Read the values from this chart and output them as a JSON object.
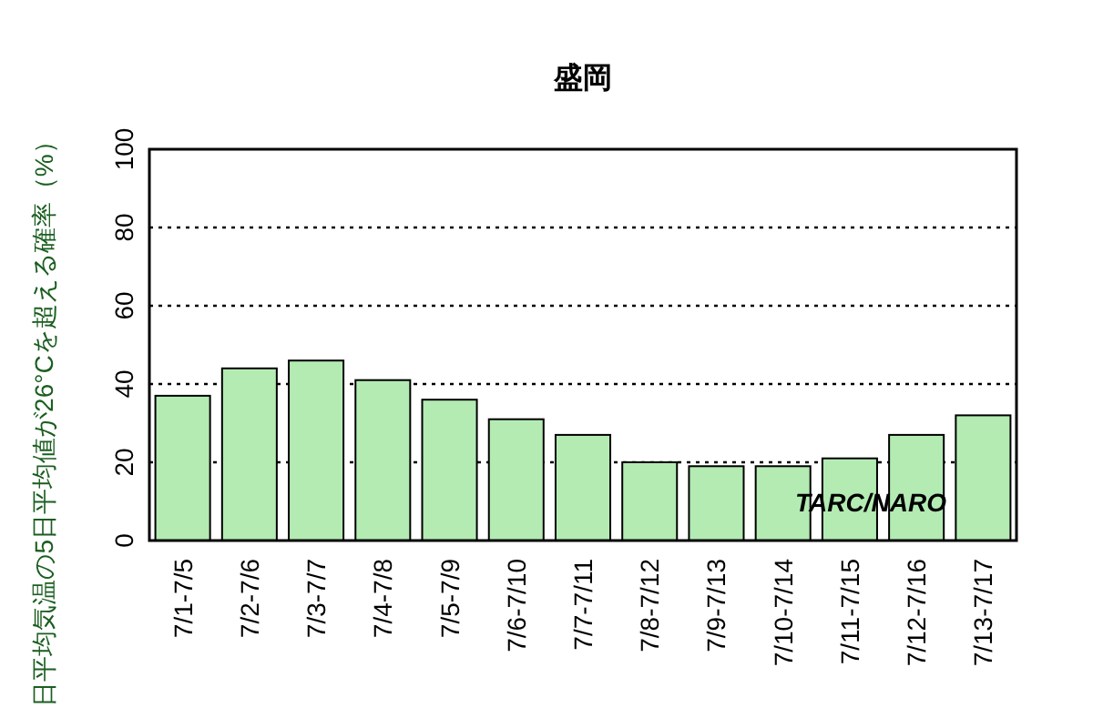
{
  "chart_data": {
    "type": "bar",
    "title": "盛岡",
    "ylabel": "日平均気温の5日平均値が26°Cを超える確率（%）",
    "categories": [
      "7/1-7/5",
      "7/2-7/6",
      "7/3-7/7",
      "7/4-7/8",
      "7/5-7/9",
      "7/6-7/10",
      "7/7-7/11",
      "7/8-7/12",
      "7/9-7/13",
      "7/10-7/14",
      "7/11-7/15",
      "7/12-7/16",
      "7/13-7/17"
    ],
    "values": [
      37,
      44,
      46,
      41,
      36,
      31,
      27,
      20,
      19,
      19,
      21,
      27,
      32
    ],
    "color": "#b3ebb3",
    "ylim": [
      0,
      100
    ],
    "yticks": [
      0,
      20,
      40,
      60,
      80,
      100
    ],
    "grid": "y",
    "annotations": [
      "TARC/NARO"
    ]
  }
}
